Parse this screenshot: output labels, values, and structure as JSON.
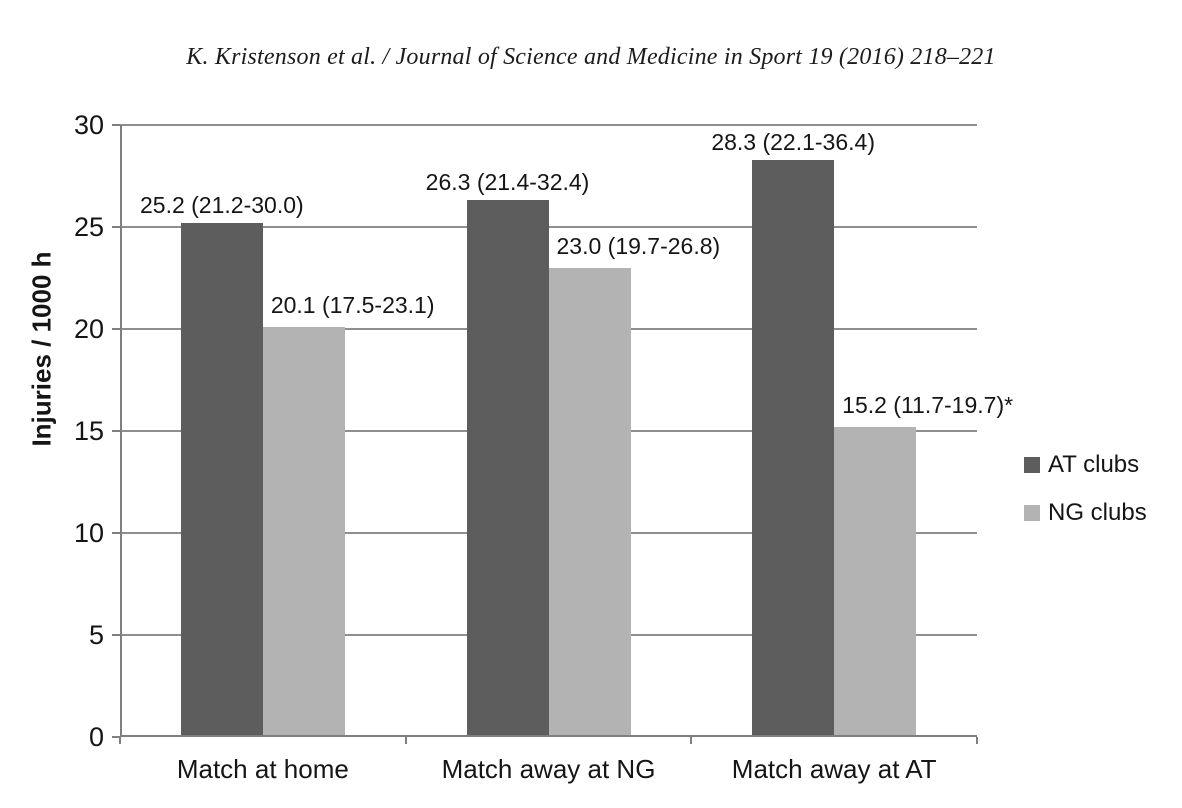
{
  "header": {
    "title": "K. Kristenson et al. / Journal of Science and Medicine in Sport 19 (2016) 218–221"
  },
  "chart_data": {
    "type": "bar",
    "title": "",
    "xlabel": "",
    "ylabel": "Injuries / 1000 h",
    "ylim": [
      0,
      30
    ],
    "ytick_step": 5,
    "grid": true,
    "legend_position": "right",
    "categories": [
      "Match at home",
      "Match away at NG",
      "Match away at AT"
    ],
    "series": [
      {
        "name": "AT clubs",
        "color": "#5d5d5d",
        "values": [
          25.2,
          26.3,
          28.3
        ],
        "labels": [
          "25.2 (21.2-30.0)",
          "26.3 (21.4-32.4)",
          "28.3 (22.1-36.4)"
        ]
      },
      {
        "name": "NG clubs",
        "color": "#b3b3b3",
        "values": [
          20.1,
          23.0,
          15.2
        ],
        "labels": [
          "20.1 (17.5-23.1)",
          "23.0 (19.7-26.8)",
          "15.2 (11.7-19.7)*"
        ]
      }
    ],
    "colors": {
      "gridline": "#8e8e8e",
      "axis": "#7f7f7f",
      "text": "#151515"
    }
  }
}
